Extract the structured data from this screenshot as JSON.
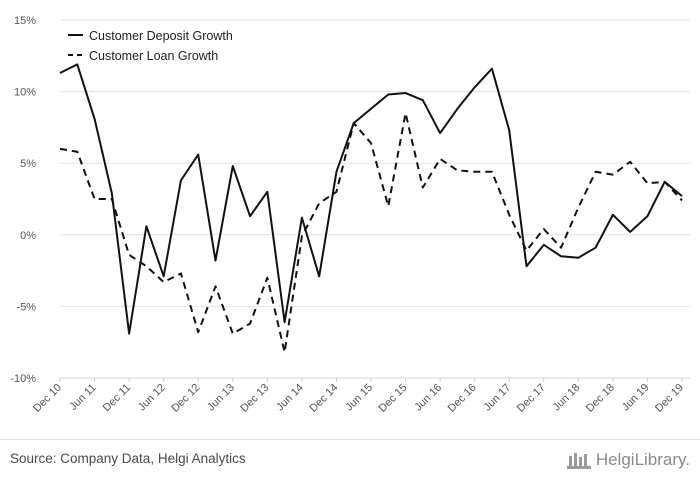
{
  "chart_data": {
    "type": "line",
    "categories": [
      "Dec 10",
      "Mar 11",
      "Jun 11",
      "Sep 11",
      "Dec 11",
      "Mar 12",
      "Jun 12",
      "Sep 12",
      "Dec 12",
      "Mar 13",
      "Jun 13",
      "Sep 13",
      "Dec 13",
      "Mar 14",
      "Jun 14",
      "Sep 14",
      "Dec 14",
      "Mar 15",
      "Jun 15",
      "Sep 15",
      "Dec 15",
      "Mar 16",
      "Jun 16",
      "Sep 16",
      "Dec 16",
      "Mar 17",
      "Jun 17",
      "Sep 17",
      "Dec 17",
      "Mar 18",
      "Jun 18",
      "Sep 18",
      "Dec 18",
      "Mar 19",
      "Jun 19",
      "Sep 19",
      "Dec 19"
    ],
    "tick_labels": [
      "Dec 10",
      "Jun 11",
      "Dec 11",
      "Jun 12",
      "Dec 12",
      "Jun 13",
      "Dec 13",
      "Jun 14",
      "Dec 14",
      "Jun 15",
      "Dec 15",
      "Jun 16",
      "Dec 16",
      "Jun 17",
      "Dec 17",
      "Jun 18",
      "Dec 18",
      "Jun 19",
      "Dec 19"
    ],
    "series": [
      {
        "name": "Customer Deposit Growth",
        "style": "solid",
        "color": "#111111",
        "values": [
          11.3,
          11.9,
          8.1,
          2.9,
          -6.9,
          0.6,
          -2.9,
          3.8,
          5.6,
          -1.8,
          4.8,
          1.3,
          3.0,
          -6.1,
          1.2,
          -2.9,
          4.4,
          7.8,
          8.8,
          9.8,
          9.9,
          9.4,
          7.1,
          8.8,
          10.3,
          11.6,
          7.3,
          -2.2,
          -0.7,
          -1.5,
          -1.6,
          -0.9,
          1.4,
          0.2,
          1.3,
          3.7,
          2.7
        ]
      },
      {
        "name": "Customer Loan Growth",
        "style": "dashed",
        "color": "#111111",
        "values": [
          6.0,
          5.8,
          2.5,
          2.5,
          -1.4,
          -2.2,
          -3.3,
          -2.7,
          -6.8,
          -3.6,
          -6.9,
          -6.2,
          -3.0,
          -8.2,
          -0.1,
          2.2,
          3.0,
          7.8,
          6.4,
          2.0,
          8.5,
          3.3,
          5.3,
          4.5,
          4.4,
          4.4,
          1.4,
          -1.1,
          0.4,
          -0.9,
          1.9,
          4.4,
          4.2,
          5.1,
          3.6,
          3.7,
          2.4
        ]
      }
    ],
    "yticks": [
      "15%",
      "10%",
      "5%",
      "0%",
      "-5%",
      "-10%"
    ],
    "ylim": [
      -10,
      15
    ],
    "xlabel": "",
    "ylabel": "",
    "grid": "horizontal",
    "legend": "top-left"
  },
  "footer": {
    "source": "Source: Company Data, Helgi Analytics",
    "brand": "HelgiLibrary."
  }
}
